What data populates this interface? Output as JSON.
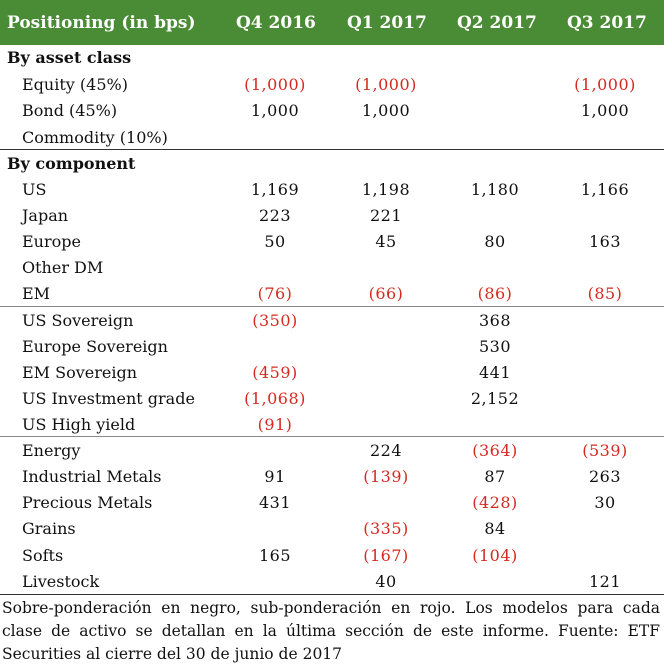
{
  "header": {
    "title": "Positioning (in bps)",
    "columns": [
      "Q4 2016",
      "Q1 2017",
      "Q2 2017",
      "Q3 2017"
    ]
  },
  "sections": [
    {
      "title": "By asset class",
      "rows": [
        {
          "label": "Equity (45%)",
          "values": [
            "(1,000)",
            "(1,000)",
            "",
            "(1,000)"
          ]
        },
        {
          "label": "Bond (45%)",
          "values": [
            "1,000",
            "1,000",
            "",
            "1,000"
          ]
        },
        {
          "label": "Commodity (10%)",
          "values": [
            "",
            "",
            "",
            ""
          ]
        }
      ]
    },
    {
      "title": "By component",
      "rows": [
        {
          "label": "US",
          "values": [
            "1,169",
            "1,198",
            "1,180",
            "1,166"
          ]
        },
        {
          "label": "Japan",
          "values": [
            "223",
            "221",
            "",
            ""
          ]
        },
        {
          "label": "Europe",
          "values": [
            "50",
            "45",
            "80",
            "163"
          ]
        },
        {
          "label": "Other DM",
          "values": [
            "",
            "",
            "",
            ""
          ]
        },
        {
          "label": "EM",
          "values": [
            "(76)",
            "(66)",
            "(86)",
            "(85)"
          ]
        },
        {
          "label": "US Sovereign",
          "values": [
            "(350)",
            "",
            "368",
            ""
          ]
        },
        {
          "label": "Europe Sovereign",
          "values": [
            "",
            "",
            "530",
            ""
          ]
        },
        {
          "label": "EM Sovereign",
          "values": [
            "(459)",
            "",
            "441",
            ""
          ]
        },
        {
          "label": "US Investment grade",
          "values": [
            "(1,068)",
            "",
            "2,152",
            ""
          ]
        },
        {
          "label": "US High yield",
          "values": [
            "(91)",
            "",
            "",
            ""
          ]
        },
        {
          "label": "Energy",
          "values": [
            "",
            "224",
            "(364)",
            "(539)"
          ]
        },
        {
          "label": "Industrial Metals",
          "values": [
            "91",
            "(139)",
            "87",
            "263"
          ]
        },
        {
          "label": "Precious Metals",
          "values": [
            "431",
            "",
            "(428)",
            "30"
          ]
        },
        {
          "label": "Grains",
          "values": [
            "",
            "(335)",
            "84",
            ""
          ]
        },
        {
          "label": "Softs",
          "values": [
            "165",
            "(167)",
            "(104)",
            ""
          ]
        },
        {
          "label": "Livestock",
          "values": [
            "",
            "40",
            "",
            "121"
          ]
        }
      ]
    }
  ],
  "footnote": "Sobre-ponderación en negro, sub-ponderación en rojo. Los modelos para cada clase de activo se detallan en la última sección de este informe. Fuente: ETF Securities al cierre del 30 de junio de 2017",
  "colors": {
    "header_bg": "#4a8b35",
    "negative": "#d42a20"
  }
}
